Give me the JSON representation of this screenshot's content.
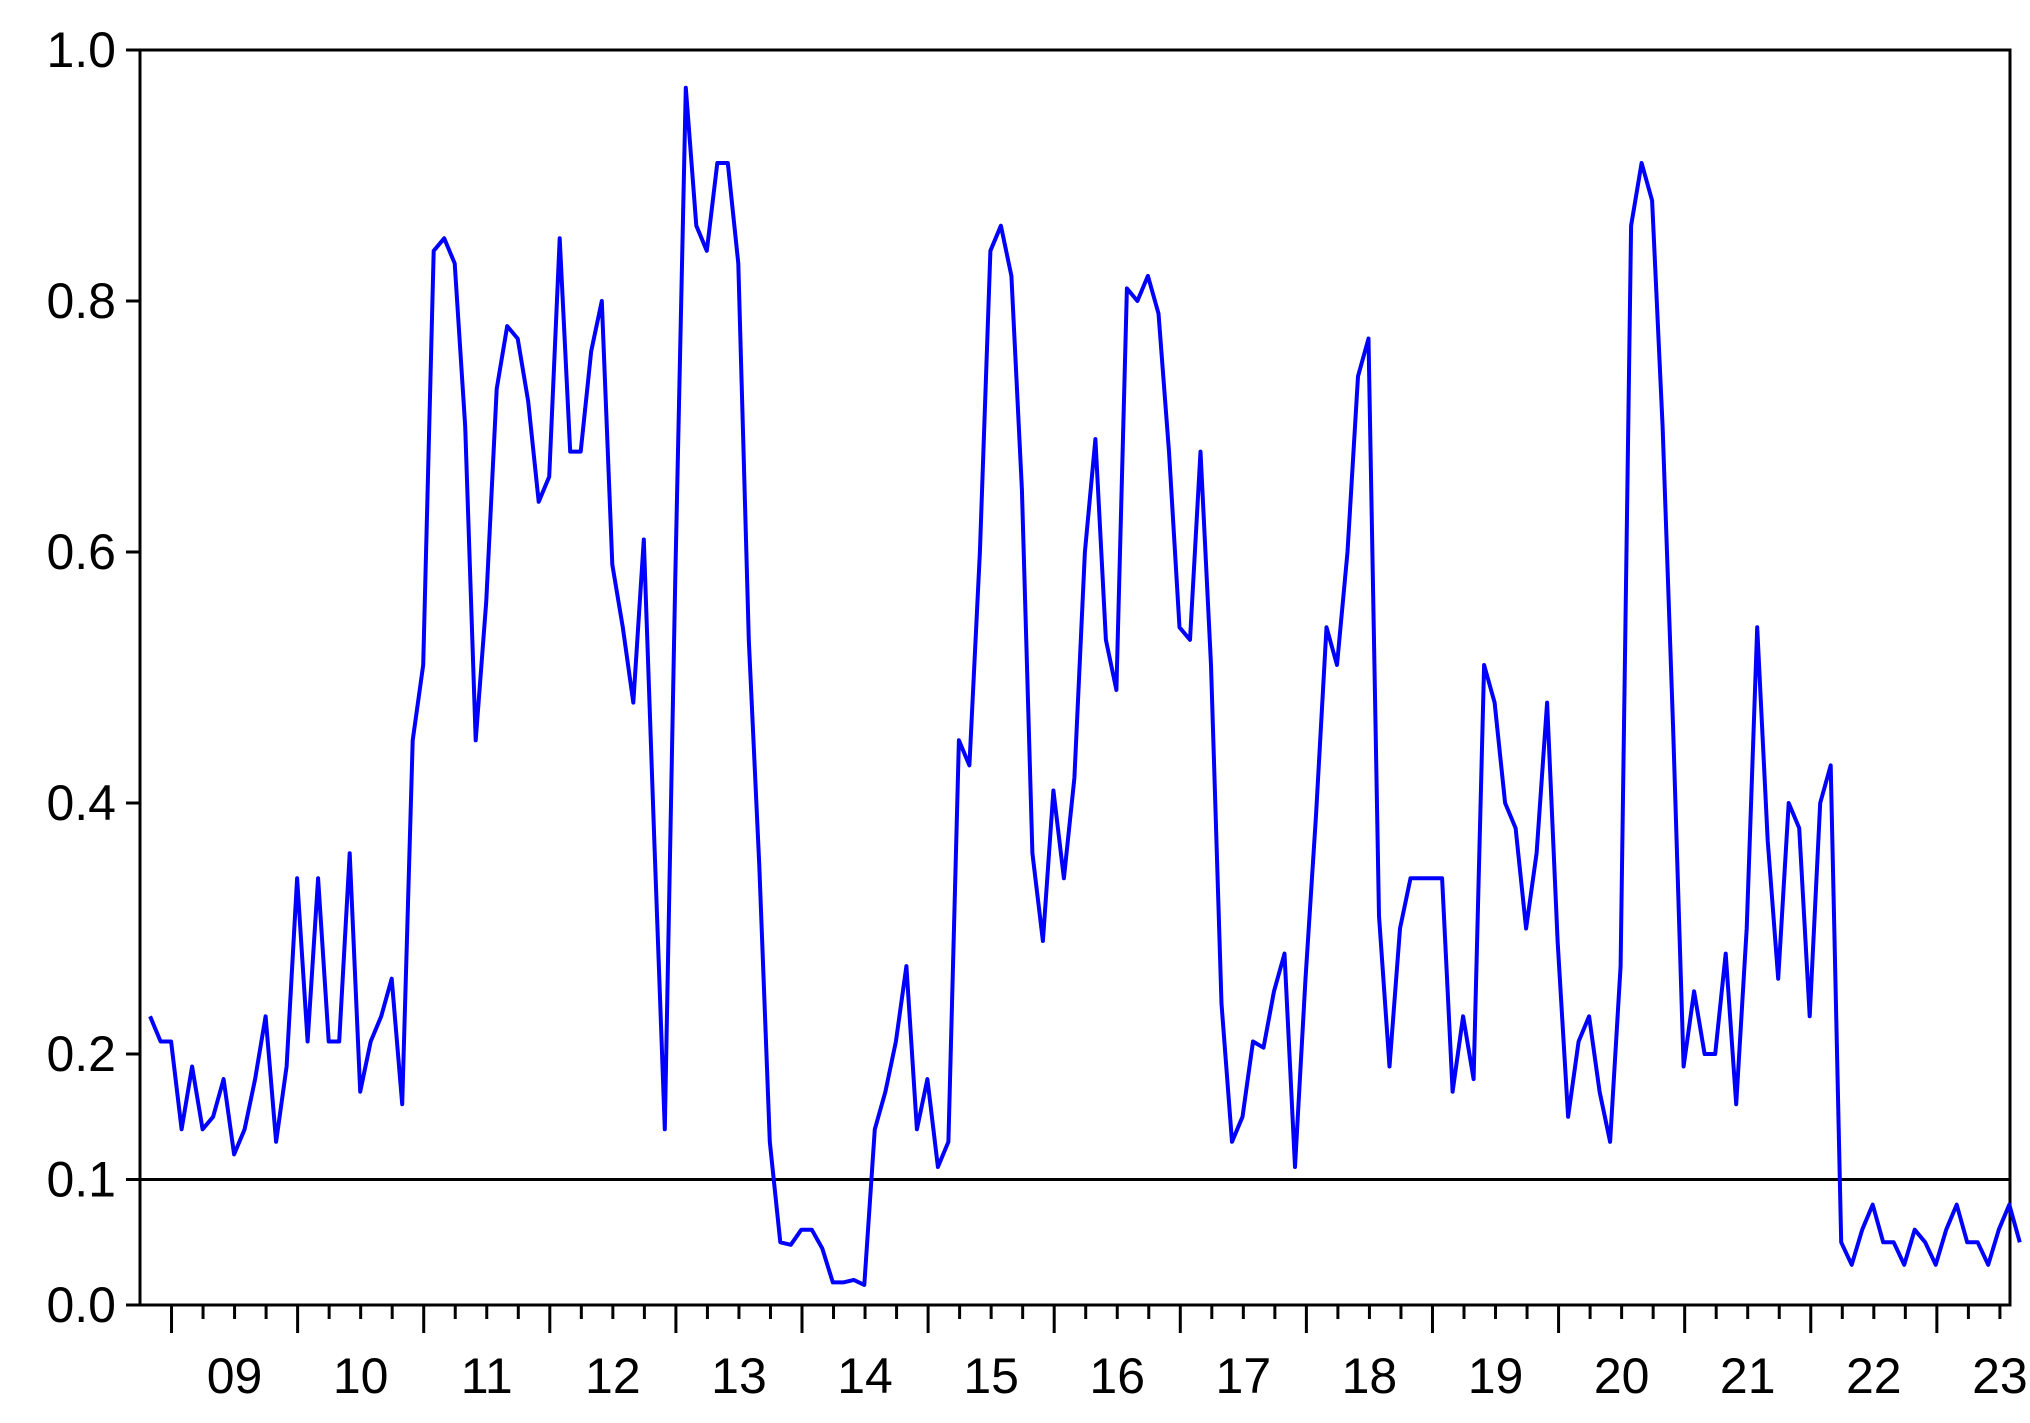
{
  "chart_data": {
    "type": "line",
    "title": "",
    "xlabel": "",
    "ylabel": "",
    "ylim": [
      0.0,
      1.0
    ],
    "yticks": [
      {
        "value": 0.0,
        "label": "0.0"
      },
      {
        "value": 0.1,
        "label": "0.1"
      },
      {
        "value": 0.2,
        "label": "0.2"
      },
      {
        "value": 0.4,
        "label": "0.4"
      },
      {
        "value": 0.6,
        "label": "0.6"
      },
      {
        "value": 0.8,
        "label": "0.8"
      },
      {
        "value": 1.0,
        "label": "1.0"
      }
    ],
    "xlim": [
      2008.75,
      2023.58
    ],
    "year_labels": [
      "09",
      "10",
      "11",
      "12",
      "13",
      "14",
      "15",
      "16",
      "17",
      "18",
      "19",
      "20",
      "21",
      "22",
      "23"
    ],
    "reference_line": {
      "value": 0.1,
      "color": "#000000"
    },
    "grid": false,
    "legend": "none",
    "series": [
      {
        "color": "#0000ff",
        "x_start": 2008.83,
        "x_step": 0.0833,
        "values": [
          0.23,
          0.21,
          0.21,
          0.14,
          0.19,
          0.14,
          0.15,
          0.18,
          0.12,
          0.14,
          0.18,
          0.23,
          0.13,
          0.19,
          0.34,
          0.21,
          0.34,
          0.21,
          0.21,
          0.36,
          0.17,
          0.21,
          0.23,
          0.26,
          0.16,
          0.45,
          0.51,
          0.84,
          0.85,
          0.83,
          0.7,
          0.45,
          0.56,
          0.73,
          0.78,
          0.77,
          0.72,
          0.64,
          0.66,
          0.85,
          0.68,
          0.68,
          0.76,
          0.8,
          0.59,
          0.54,
          0.48,
          0.61,
          0.37,
          0.14,
          0.58,
          0.97,
          0.86,
          0.84,
          0.91,
          0.91,
          0.83,
          0.53,
          0.35,
          0.13,
          0.05,
          0.048,
          0.06,
          0.06,
          0.045,
          0.018,
          0.018,
          0.02,
          0.016,
          0.14,
          0.17,
          0.21,
          0.27,
          0.14,
          0.18,
          0.11,
          0.13,
          0.45,
          0.43,
          0.6,
          0.84,
          0.86,
          0.82,
          0.65,
          0.36,
          0.29,
          0.41,
          0.34,
          0.42,
          0.6,
          0.69,
          0.53,
          0.49,
          0.81,
          0.8,
          0.82,
          0.79,
          0.68,
          0.54,
          0.53,
          0.68,
          0.51,
          0.24,
          0.13,
          0.15,
          0.21,
          0.205,
          0.25,
          0.28,
          0.11,
          0.26,
          0.39,
          0.54,
          0.51,
          0.6,
          0.74,
          0.77,
          0.31,
          0.19,
          0.3,
          0.34,
          0.34,
          0.34,
          0.34,
          0.17,
          0.23,
          0.18,
          0.51,
          0.48,
          0.4,
          0.38,
          0.3,
          0.36,
          0.48,
          0.29,
          0.15,
          0.21,
          0.23,
          0.17,
          0.13,
          0.27,
          0.86,
          0.91,
          0.88,
          0.7,
          0.46,
          0.19,
          0.25,
          0.2,
          0.2,
          0.28,
          0.16,
          0.3,
          0.54,
          0.37,
          0.26,
          0.4,
          0.38,
          0.23,
          0.4,
          0.43,
          0.05,
          0.032,
          0.06,
          0.08,
          0.05,
          0.05,
          0.032,
          0.06,
          0.05,
          0.032,
          0.06,
          0.08,
          0.05,
          0.05,
          0.032,
          0.06,
          0.08,
          0.05
        ]
      }
    ]
  }
}
